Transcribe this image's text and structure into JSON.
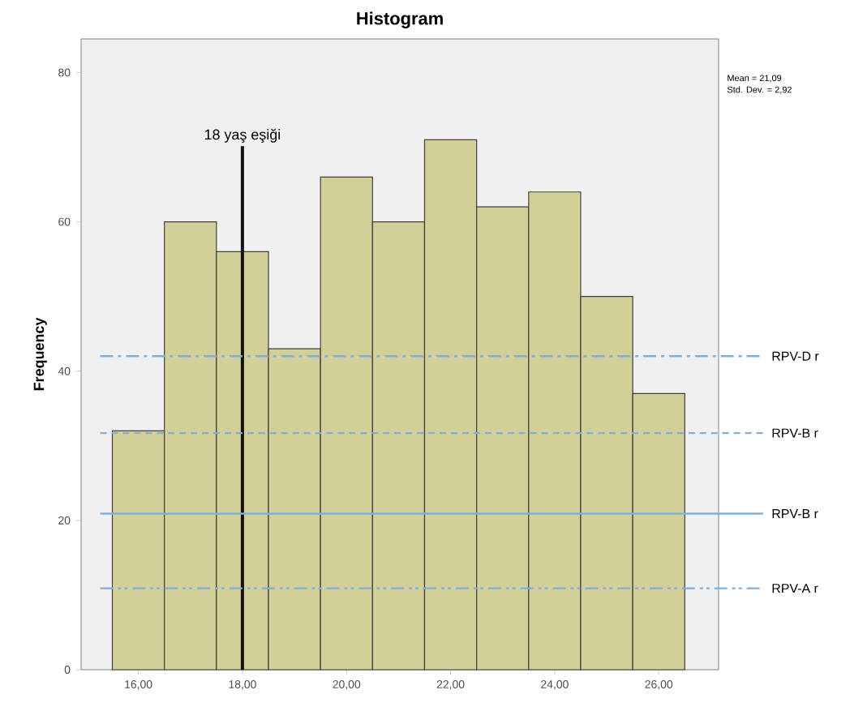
{
  "chart_data": {
    "type": "histogram",
    "title": "Histogram",
    "ylabel": "Frequency",
    "bins": [
      15.5,
      16.5,
      17.5,
      18.5,
      19.5,
      20.5,
      21.5,
      22.5,
      23.5,
      24.5,
      25.5,
      26.5
    ],
    "values": [
      32,
      60,
      56,
      43,
      66,
      60,
      71,
      62,
      64,
      50,
      37
    ],
    "color": "#d3cf98",
    "xlim": [
      14.9,
      27.15
    ],
    "ylim": [
      0,
      84.5
    ],
    "xticks": [
      {
        "value": 16,
        "label": "16,00"
      },
      {
        "value": 18,
        "label": "18,00"
      },
      {
        "value": 20,
        "label": "20,00"
      },
      {
        "value": 22,
        "label": "22,00"
      },
      {
        "value": 24,
        "label": "24,00"
      },
      {
        "value": 26,
        "label": "26,00"
      }
    ],
    "yticks": [
      0,
      20,
      40,
      60,
      80
    ],
    "grid": false,
    "ref_lines": [
      {
        "axis": "x",
        "value": 18,
        "label": "18 yaş eşiği",
        "color": "#111111",
        "line_style": "solid"
      },
      {
        "axis": "y",
        "value": 42,
        "label": "RPV-D r",
        "color": "#7fb0dc",
        "line_style": "dashdot"
      },
      {
        "axis": "y",
        "value": 31.7,
        "label": "RPV-B r",
        "color": "#7fb0dc",
        "line_style": "dashed"
      },
      {
        "axis": "y",
        "value": 20.9,
        "label": "RPV-B r",
        "color": "#7fb0dc",
        "line_style": "solid"
      },
      {
        "axis": "y",
        "value": 10.9,
        "label": "RPV-A r",
        "color": "#7fb0dc",
        "line_style": "dashdotdot"
      }
    ],
    "annotations": [
      "Mean = 21,09",
      "Std. Dev. = 2,92"
    ]
  }
}
